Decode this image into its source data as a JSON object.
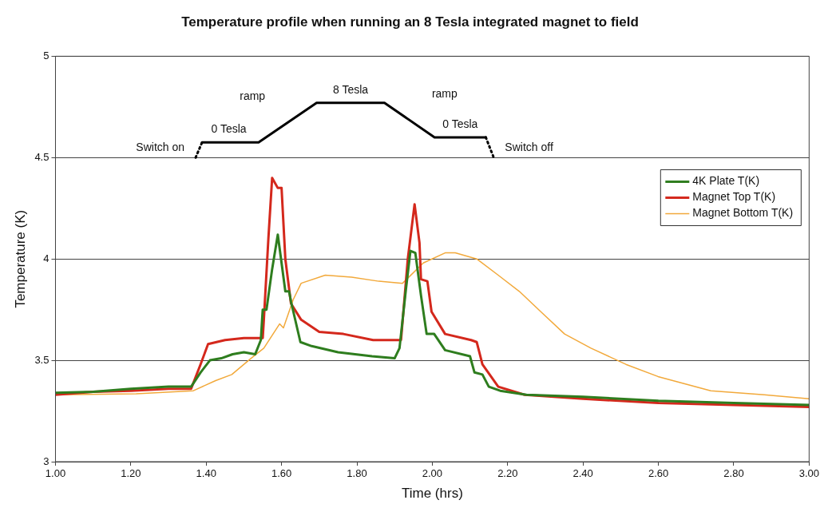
{
  "chart_data": {
    "type": "line",
    "title": "Temperature profile when running an 8 Tesla integrated magnet to field",
    "xlabel": "Time (hrs)",
    "ylabel": "Temperature (K)",
    "xlim": [
      1,
      3
    ],
    "xticks": [
      {
        "value": 1,
        "label": "1.00"
      },
      {
        "value": 1.2,
        "label": "1.20"
      },
      {
        "value": 1.4,
        "label": "1.40"
      },
      {
        "value": 1.6,
        "label": "1.60"
      },
      {
        "value": 1.8,
        "label": "1.80"
      },
      {
        "value": 2,
        "label": "2.00"
      },
      {
        "value": 2.2,
        "label": "2.20"
      },
      {
        "value": 2.4,
        "label": "2.40"
      },
      {
        "value": 2.6,
        "label": "2.60"
      },
      {
        "value": 2.8,
        "label": "2.80"
      },
      {
        "value": 3,
        "label": "3.00"
      }
    ],
    "ylim": [
      3,
      5
    ],
    "yticks": [
      3,
      3.5,
      4,
      4.5,
      5
    ],
    "grid": "y",
    "legend": "right",
    "marker": "none",
    "series": [
      {
        "name": "4K Plate T(K)",
        "color": "#2e7d1e",
        "x": [
          1.0,
          1.1,
          1.2,
          1.3,
          1.36,
          1.385,
          1.41,
          1.44,
          1.47,
          1.5,
          1.53,
          1.545,
          1.55,
          1.56,
          1.575,
          1.59,
          1.6,
          1.61,
          1.62,
          1.625,
          1.65,
          1.68,
          1.75,
          1.84,
          1.9,
          1.913,
          1.93,
          1.942,
          1.955,
          1.97,
          1.985,
          2.005,
          2.034,
          2.1,
          2.112,
          2.133,
          2.15,
          2.18,
          2.25,
          2.4,
          2.6,
          2.8,
          3.0
        ],
        "values": [
          3.34,
          3.345,
          3.36,
          3.37,
          3.37,
          3.44,
          3.5,
          3.51,
          3.53,
          3.54,
          3.53,
          3.6,
          3.75,
          3.75,
          3.95,
          4.12,
          3.98,
          3.84,
          3.84,
          3.79,
          3.59,
          3.57,
          3.54,
          3.52,
          3.51,
          3.56,
          3.85,
          4.04,
          4.03,
          3.82,
          3.63,
          3.63,
          3.55,
          3.52,
          3.44,
          3.43,
          3.37,
          3.35,
          3.33,
          3.32,
          3.3,
          3.29,
          3.28
        ]
      },
      {
        "name": "Magnet Top T(K)",
        "color": "#d4281c",
        "x": [
          1.0,
          1.1,
          1.2,
          1.3,
          1.36,
          1.385,
          1.405,
          1.45,
          1.5,
          1.55,
          1.553,
          1.565,
          1.575,
          1.59,
          1.6,
          1.61,
          1.625,
          1.652,
          1.7,
          1.764,
          1.843,
          1.917,
          1.935,
          1.953,
          1.966,
          1.97,
          1.987,
          1.998,
          2.034,
          2.103,
          2.118,
          2.133,
          2.175,
          2.245,
          2.4,
          2.6,
          2.8,
          3.0
        ],
        "values": [
          3.33,
          3.345,
          3.35,
          3.36,
          3.36,
          3.48,
          3.58,
          3.6,
          3.61,
          3.61,
          3.7,
          4.1,
          4.4,
          4.35,
          4.35,
          4.0,
          3.78,
          3.7,
          3.64,
          3.63,
          3.6,
          3.6,
          4.0,
          4.27,
          4.08,
          3.9,
          3.89,
          3.74,
          3.63,
          3.6,
          3.59,
          3.48,
          3.37,
          3.33,
          3.31,
          3.29,
          3.28,
          3.27
        ]
      },
      {
        "name": "Magnet Bottom T(K)",
        "color": "#f2a93b",
        "x": [
          1.0,
          1.214,
          1.366,
          1.425,
          1.468,
          1.519,
          1.553,
          1.595,
          1.605,
          1.631,
          1.652,
          1.716,
          1.786,
          1.858,
          1.921,
          1.976,
          2.034,
          2.061,
          2.118,
          2.175,
          2.231,
          2.288,
          2.351,
          2.421,
          2.514,
          2.599,
          2.739,
          2.881,
          3.0
        ],
        "values": [
          3.33,
          3.335,
          3.35,
          3.4,
          3.43,
          3.51,
          3.56,
          3.68,
          3.66,
          3.8,
          3.88,
          3.92,
          3.91,
          3.89,
          3.88,
          3.98,
          4.03,
          4.03,
          4.0,
          3.92,
          3.84,
          3.74,
          3.63,
          3.56,
          3.48,
          3.42,
          3.35,
          3.33,
          3.31
        ]
      },
      {
        "color": "#000000",
        "line_style": "dotted",
        "x": [
          1.372,
          1.389
        ],
        "values": [
          4.5,
          4.575
        ]
      },
      {
        "color": "#000000",
        "line_style": "solid",
        "x": [
          1.389,
          1.539,
          1.693,
          1.873,
          2.006,
          2.142
        ],
        "values": [
          4.575,
          4.575,
          4.77,
          4.77,
          4.6,
          4.6
        ]
      },
      {
        "color": "#000000",
        "line_style": "dotted",
        "x": [
          2.142,
          2.163
        ],
        "values": [
          4.6,
          4.5
        ]
      }
    ],
    "annotations": [
      {
        "text": "Switch on",
        "x": 1.372,
        "y": 4.5
      },
      {
        "text": "0 Tesla",
        "x": 1.46,
        "y": 4.575
      },
      {
        "text": "ramp",
        "x": 1.616,
        "y": 4.6725
      },
      {
        "text": "8 Tesla",
        "x": 1.783,
        "y": 4.77
      },
      {
        "text": "ramp",
        "x": 1.9395,
        "y": 4.685
      },
      {
        "text": "0 Tesla",
        "x": 2.074,
        "y": 4.6
      },
      {
        "text": "Switch off",
        "x": 2.163,
        "y": 4.5
      }
    ]
  }
}
